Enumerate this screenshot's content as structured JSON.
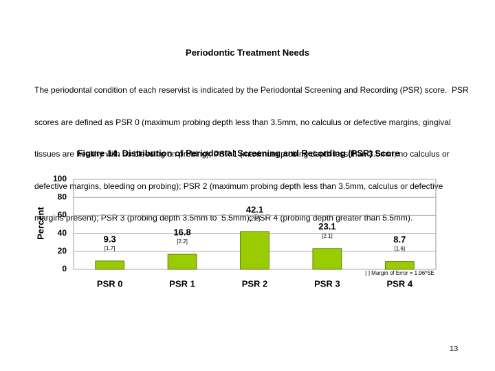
{
  "header": {
    "title": "Periodontic Treatment Needs"
  },
  "paragraph": {
    "lines": [
      "The periodontal condition of each reservist is indicated by the Periodontal Screening and Recording (PSR) score.  PSR",
      "scores are defined as PSR 0 (maximum probing depth less than 3.5mm, no calculus or defective margins, gingival",
      "tissues are healthy with no bleeding on probing); PSR 1 (maximum probing depth less than 3.5mm, no calculus or",
      "defective margins, bleeding on probing); PSR 2 (maximum probing depth less than 3.5mm, calculus or defective",
      "margins present); PSR 3 (probing depth 3.5mm to  5.5mm); PSR 4 (probing depth greater than 5.5mm)."
    ]
  },
  "chart_data": {
    "type": "bar",
    "title": "Figure 14.  Distribution of Periodontal Screening and Recording (PSR) Score",
    "y_label": "Percent",
    "categories": [
      "PSR 0",
      "PSR 1",
      "PSR 2",
      "PSR 3",
      "PSR 4"
    ],
    "values": [
      9.3,
      16.8,
      42.1,
      23.1,
      8.7
    ],
    "error_labels": [
      "[1.7]",
      "[2.2]",
      "[2.8]",
      "[2.1]",
      "[1.6]"
    ],
    "note": "[ ]  Margin of Error = 1.96*SE",
    "color": "#99cc00",
    "ylim": [
      0,
      100
    ],
    "yticks": [
      0,
      20,
      40,
      60,
      80,
      100
    ],
    "grid": true
  },
  "footer": {
    "page_number": "13"
  }
}
